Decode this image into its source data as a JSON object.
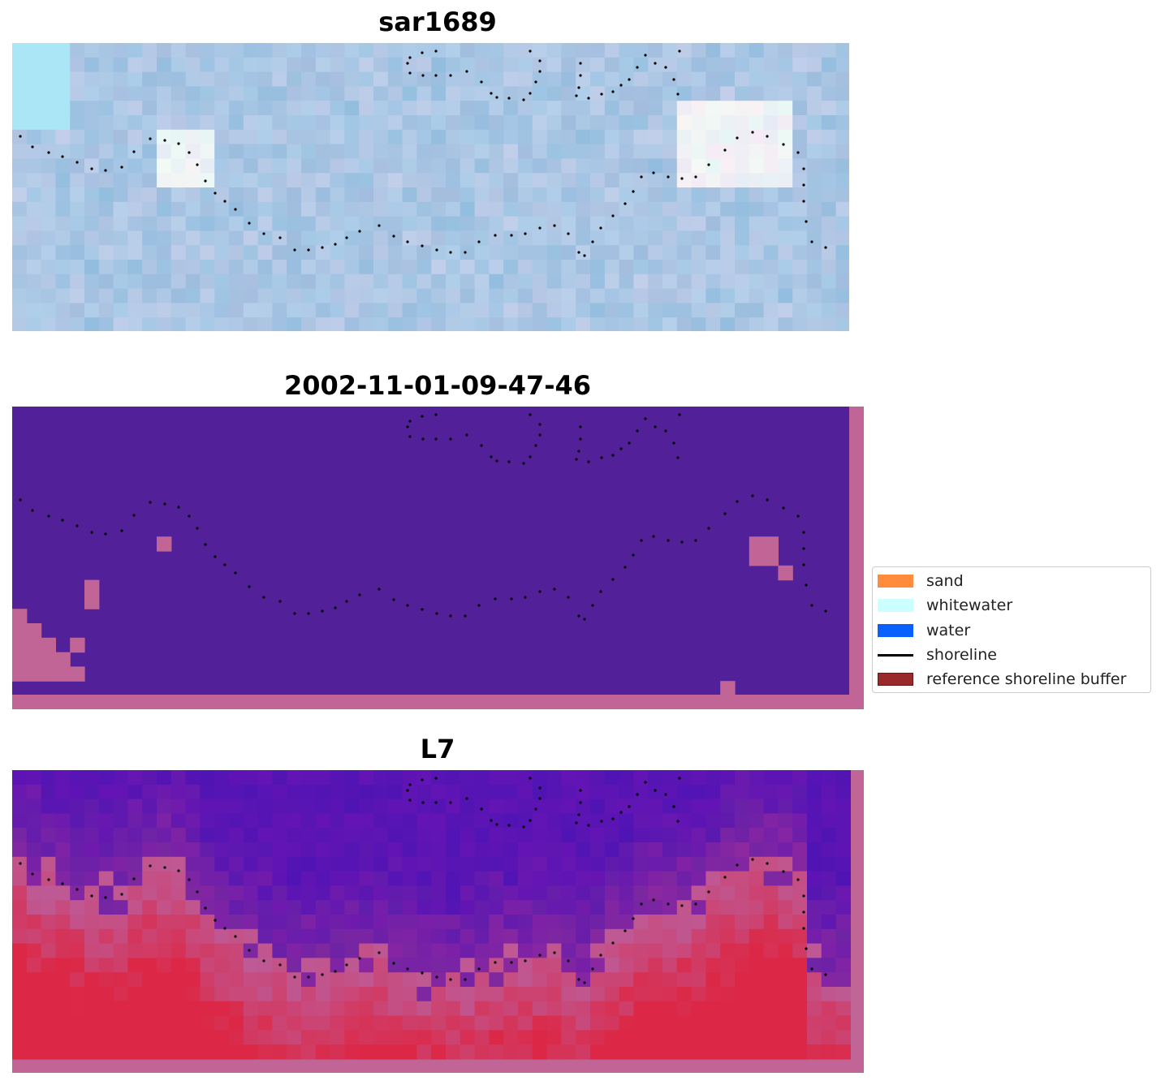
{
  "panels": [
    {
      "title": "sar1689"
    },
    {
      "title": "2002-11-01-09-47-46"
    },
    {
      "title": "L7"
    }
  ],
  "legend": {
    "items": [
      {
        "label": "sand",
        "color": "#ff8c3a",
        "kind": "patch"
      },
      {
        "label": "whitewater",
        "color": "#ccffff",
        "kind": "patch"
      },
      {
        "label": "water",
        "color": "#0a5fff",
        "kind": "patch"
      },
      {
        "label": "shoreline",
        "color": "#000000",
        "kind": "line"
      },
      {
        "label": "reference shoreline buffer",
        "color": "#9a2a2a",
        "kind": "patch"
      }
    ]
  },
  "colors": {
    "classification_background": "#52219a",
    "buffer_overlay": "#c06595",
    "shoreline_points": "#000000"
  }
}
